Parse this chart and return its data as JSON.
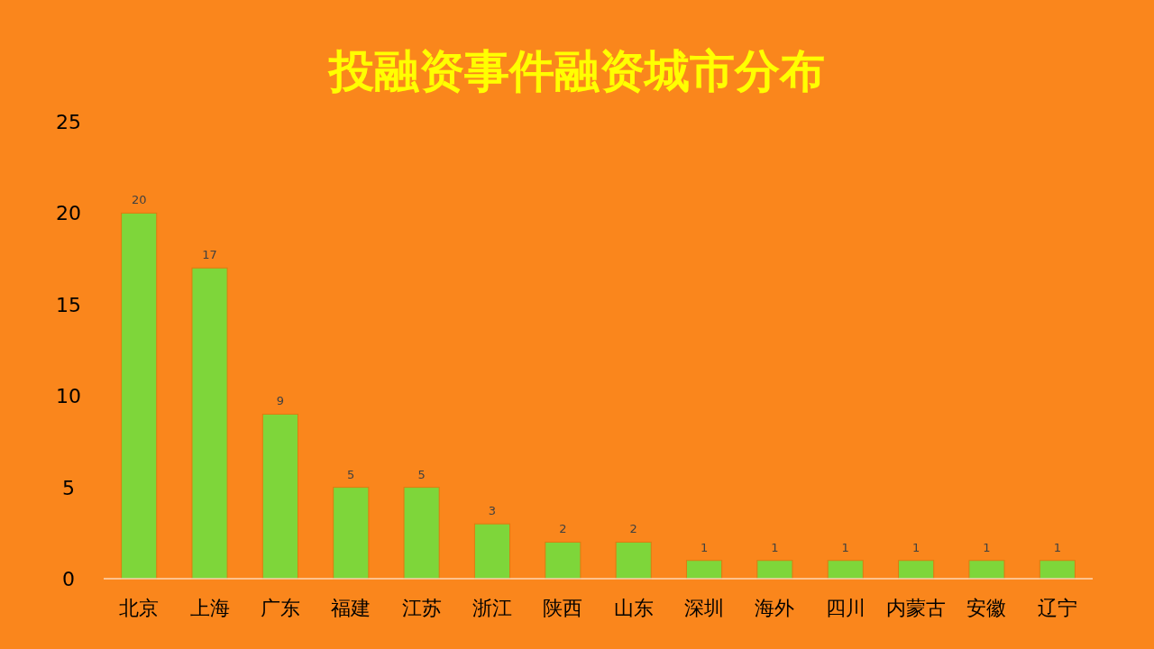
{
  "chart_data": {
    "type": "bar",
    "title": "投融资事件融资城市分布",
    "categories": [
      "北京",
      "上海",
      "广东",
      "福建",
      "江苏",
      "浙江",
      "陕西",
      "山东",
      "深圳",
      "海外",
      "四川",
      "内蒙古",
      "安徽",
      "辽宁"
    ],
    "values": [
      20,
      17,
      9,
      5,
      5,
      3,
      2,
      2,
      1,
      1,
      1,
      1,
      1,
      1
    ],
    "color": "#7ed63a",
    "ylim": [
      0,
      25
    ],
    "yticks": [
      0,
      5,
      10,
      15,
      20,
      25
    ],
    "data_labels": true
  }
}
